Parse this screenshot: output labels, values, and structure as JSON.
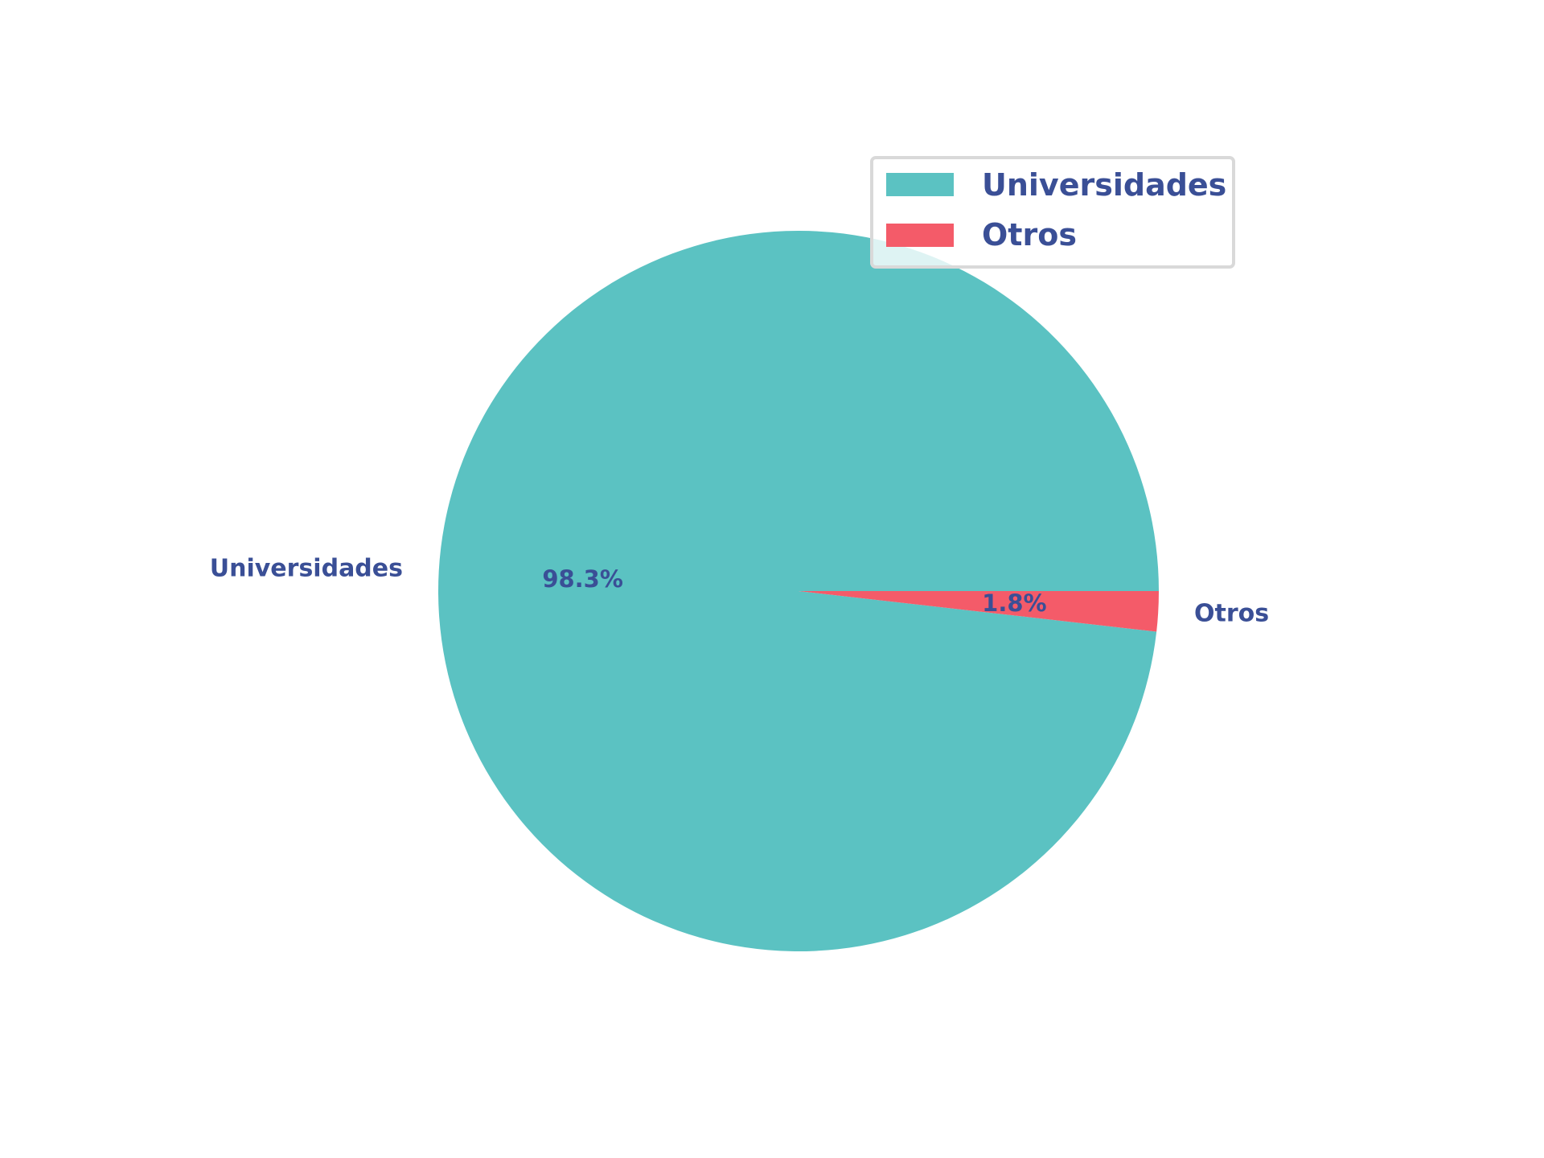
{
  "chart_data": {
    "type": "pie",
    "categories": [
      "Universidades",
      "Otros"
    ],
    "values": [
      98.3,
      1.8
    ],
    "value_labels": [
      "98.3%",
      "1.8%"
    ],
    "colors": [
      "#5bc2c2",
      "#f45b69"
    ],
    "text_color": "#3a4f96",
    "legend": {
      "placement": "top-right",
      "entries": [
        "Universidades",
        "Otros"
      ]
    }
  }
}
